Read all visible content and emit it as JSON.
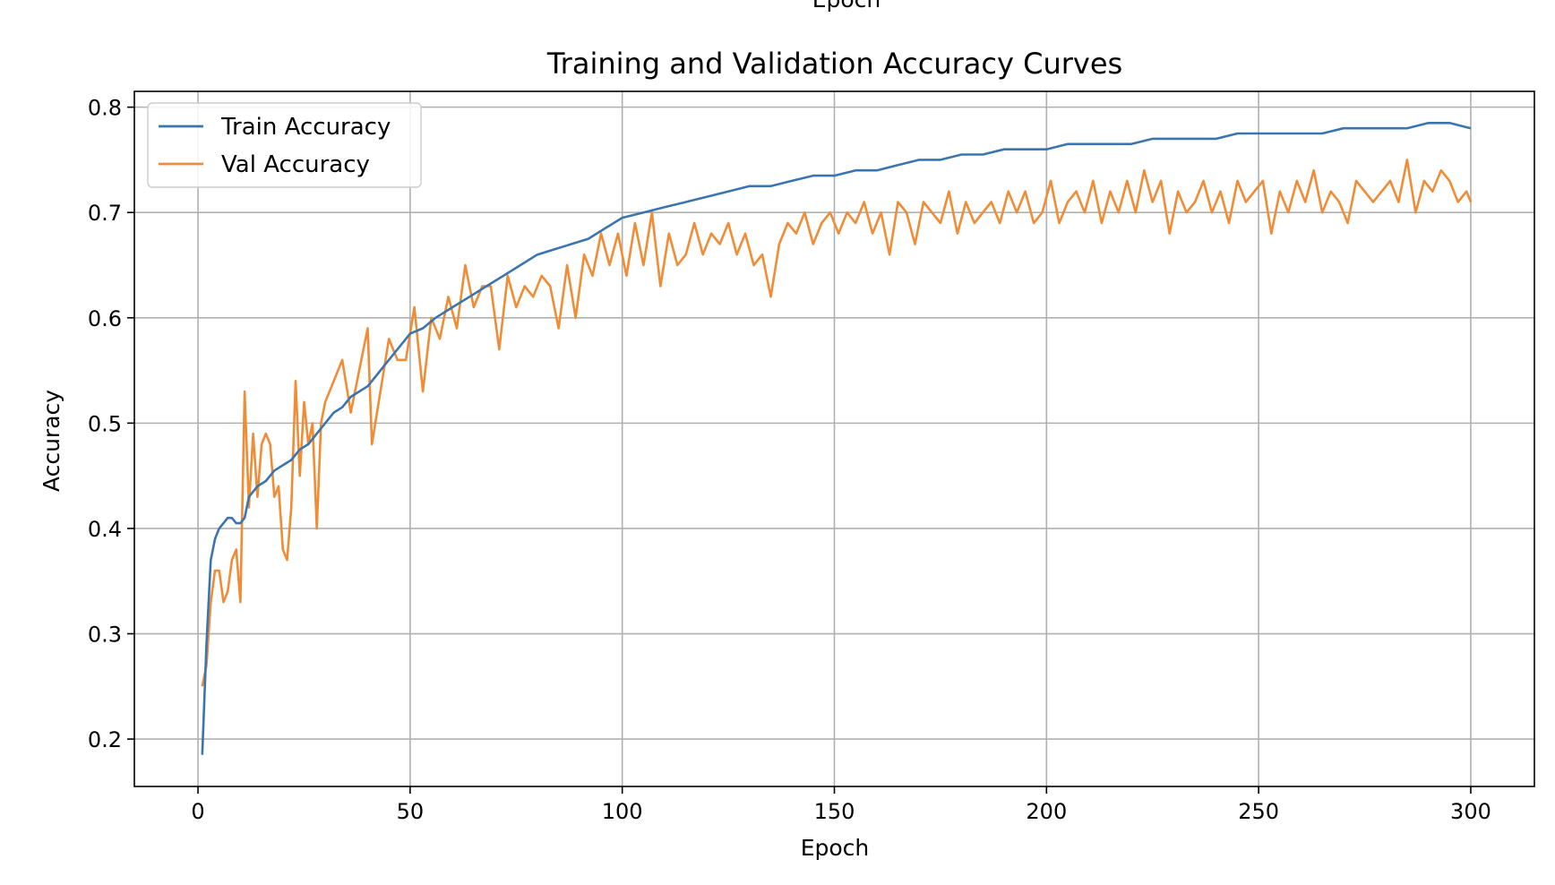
{
  "top_clipped_label": "Epoch",
  "chart_data": {
    "type": "line",
    "title": "Training and Validation Accuracy Curves",
    "xlabel": "Epoch",
    "ylabel": "Accuracy",
    "xlim": [
      -15,
      315
    ],
    "ylim": [
      0.155,
      0.815
    ],
    "xticks": [
      0,
      50,
      100,
      150,
      200,
      250,
      300
    ],
    "yticks": [
      0.2,
      0.3,
      0.4,
      0.5,
      0.6,
      0.7,
      0.8
    ],
    "grid": true,
    "legend_position": "upper-left",
    "series": [
      {
        "name": "Train Accuracy",
        "color": "#3a75b0",
        "points": [
          [
            1,
            0.185
          ],
          [
            2,
            0.29
          ],
          [
            3,
            0.37
          ],
          [
            4,
            0.39
          ],
          [
            5,
            0.4
          ],
          [
            6,
            0.405
          ],
          [
            7,
            0.41
          ],
          [
            8,
            0.41
          ],
          [
            9,
            0.405
          ],
          [
            10,
            0.405
          ],
          [
            11,
            0.41
          ],
          [
            12,
            0.43
          ],
          [
            14,
            0.44
          ],
          [
            16,
            0.445
          ],
          [
            18,
            0.455
          ],
          [
            20,
            0.46
          ],
          [
            22,
            0.465
          ],
          [
            24,
            0.475
          ],
          [
            26,
            0.48
          ],
          [
            28,
            0.49
          ],
          [
            30,
            0.5
          ],
          [
            32,
            0.51
          ],
          [
            34,
            0.515
          ],
          [
            36,
            0.525
          ],
          [
            38,
            0.53
          ],
          [
            40,
            0.535
          ],
          [
            42,
            0.545
          ],
          [
            44,
            0.555
          ],
          [
            46,
            0.565
          ],
          [
            48,
            0.575
          ],
          [
            50,
            0.585
          ],
          [
            53,
            0.59
          ],
          [
            56,
            0.6
          ],
          [
            60,
            0.61
          ],
          [
            64,
            0.62
          ],
          [
            68,
            0.63
          ],
          [
            72,
            0.64
          ],
          [
            76,
            0.65
          ],
          [
            80,
            0.66
          ],
          [
            84,
            0.665
          ],
          [
            88,
            0.67
          ],
          [
            92,
            0.675
          ],
          [
            96,
            0.685
          ],
          [
            100,
            0.695
          ],
          [
            105,
            0.7
          ],
          [
            110,
            0.705
          ],
          [
            115,
            0.71
          ],
          [
            120,
            0.715
          ],
          [
            125,
            0.72
          ],
          [
            130,
            0.725
          ],
          [
            135,
            0.725
          ],
          [
            140,
            0.73
          ],
          [
            145,
            0.735
          ],
          [
            150,
            0.735
          ],
          [
            155,
            0.74
          ],
          [
            160,
            0.74
          ],
          [
            165,
            0.745
          ],
          [
            170,
            0.75
          ],
          [
            175,
            0.75
          ],
          [
            180,
            0.755
          ],
          [
            185,
            0.755
          ],
          [
            190,
            0.76
          ],
          [
            195,
            0.76
          ],
          [
            200,
            0.76
          ],
          [
            205,
            0.765
          ],
          [
            210,
            0.765
          ],
          [
            215,
            0.765
          ],
          [
            220,
            0.765
          ],
          [
            225,
            0.77
          ],
          [
            230,
            0.77
          ],
          [
            235,
            0.77
          ],
          [
            240,
            0.77
          ],
          [
            245,
            0.775
          ],
          [
            250,
            0.775
          ],
          [
            255,
            0.775
          ],
          [
            260,
            0.775
          ],
          [
            265,
            0.775
          ],
          [
            270,
            0.78
          ],
          [
            275,
            0.78
          ],
          [
            280,
            0.78
          ],
          [
            285,
            0.78
          ],
          [
            290,
            0.785
          ],
          [
            295,
            0.785
          ],
          [
            300,
            0.78
          ]
        ]
      },
      {
        "name": "Val Accuracy",
        "color": "#f08c36",
        "points": [
          [
            1,
            0.25
          ],
          [
            2,
            0.27
          ],
          [
            3,
            0.33
          ],
          [
            4,
            0.36
          ],
          [
            5,
            0.36
          ],
          [
            6,
            0.33
          ],
          [
            7,
            0.34
          ],
          [
            8,
            0.37
          ],
          [
            9,
            0.38
          ],
          [
            10,
            0.33
          ],
          [
            11,
            0.53
          ],
          [
            12,
            0.42
          ],
          [
            13,
            0.49
          ],
          [
            14,
            0.43
          ],
          [
            15,
            0.48
          ],
          [
            16,
            0.49
          ],
          [
            17,
            0.48
          ],
          [
            18,
            0.43
          ],
          [
            19,
            0.44
          ],
          [
            20,
            0.38
          ],
          [
            21,
            0.37
          ],
          [
            22,
            0.42
          ],
          [
            23,
            0.54
          ],
          [
            24,
            0.45
          ],
          [
            25,
            0.52
          ],
          [
            26,
            0.48
          ],
          [
            27,
            0.5
          ],
          [
            28,
            0.4
          ],
          [
            29,
            0.5
          ],
          [
            30,
            0.52
          ],
          [
            32,
            0.54
          ],
          [
            34,
            0.56
          ],
          [
            36,
            0.51
          ],
          [
            38,
            0.55
          ],
          [
            40,
            0.59
          ],
          [
            41,
            0.48
          ],
          [
            43,
            0.53
          ],
          [
            45,
            0.58
          ],
          [
            47,
            0.56
          ],
          [
            49,
            0.56
          ],
          [
            51,
            0.61
          ],
          [
            53,
            0.53
          ],
          [
            55,
            0.6
          ],
          [
            57,
            0.58
          ],
          [
            59,
            0.62
          ],
          [
            61,
            0.59
          ],
          [
            63,
            0.65
          ],
          [
            65,
            0.61
          ],
          [
            67,
            0.63
          ],
          [
            69,
            0.63
          ],
          [
            71,
            0.57
          ],
          [
            73,
            0.64
          ],
          [
            75,
            0.61
          ],
          [
            77,
            0.63
          ],
          [
            79,
            0.62
          ],
          [
            81,
            0.64
          ],
          [
            83,
            0.63
          ],
          [
            85,
            0.59
          ],
          [
            87,
            0.65
          ],
          [
            89,
            0.6
          ],
          [
            91,
            0.66
          ],
          [
            93,
            0.64
          ],
          [
            95,
            0.68
          ],
          [
            97,
            0.65
          ],
          [
            99,
            0.68
          ],
          [
            101,
            0.64
          ],
          [
            103,
            0.69
          ],
          [
            105,
            0.65
          ],
          [
            107,
            0.7
          ],
          [
            109,
            0.63
          ],
          [
            111,
            0.68
          ],
          [
            113,
            0.65
          ],
          [
            115,
            0.66
          ],
          [
            117,
            0.69
          ],
          [
            119,
            0.66
          ],
          [
            121,
            0.68
          ],
          [
            123,
            0.67
          ],
          [
            125,
            0.69
          ],
          [
            127,
            0.66
          ],
          [
            129,
            0.68
          ],
          [
            131,
            0.65
          ],
          [
            133,
            0.66
          ],
          [
            135,
            0.62
          ],
          [
            137,
            0.67
          ],
          [
            139,
            0.69
          ],
          [
            141,
            0.68
          ],
          [
            143,
            0.7
          ],
          [
            145,
            0.67
          ],
          [
            147,
            0.69
          ],
          [
            149,
            0.7
          ],
          [
            151,
            0.68
          ],
          [
            153,
            0.7
          ],
          [
            155,
            0.69
          ],
          [
            157,
            0.71
          ],
          [
            159,
            0.68
          ],
          [
            161,
            0.7
          ],
          [
            163,
            0.66
          ],
          [
            165,
            0.71
          ],
          [
            167,
            0.7
          ],
          [
            169,
            0.67
          ],
          [
            171,
            0.71
          ],
          [
            173,
            0.7
          ],
          [
            175,
            0.69
          ],
          [
            177,
            0.72
          ],
          [
            179,
            0.68
          ],
          [
            181,
            0.71
          ],
          [
            183,
            0.69
          ],
          [
            185,
            0.7
          ],
          [
            187,
            0.71
          ],
          [
            189,
            0.69
          ],
          [
            191,
            0.72
          ],
          [
            193,
            0.7
          ],
          [
            195,
            0.72
          ],
          [
            197,
            0.69
          ],
          [
            199,
            0.7
          ],
          [
            201,
            0.73
          ],
          [
            203,
            0.69
          ],
          [
            205,
            0.71
          ],
          [
            207,
            0.72
          ],
          [
            209,
            0.7
          ],
          [
            211,
            0.73
          ],
          [
            213,
            0.69
          ],
          [
            215,
            0.72
          ],
          [
            217,
            0.7
          ],
          [
            219,
            0.73
          ],
          [
            221,
            0.7
          ],
          [
            223,
            0.74
          ],
          [
            225,
            0.71
          ],
          [
            227,
            0.73
          ],
          [
            229,
            0.68
          ],
          [
            231,
            0.72
          ],
          [
            233,
            0.7
          ],
          [
            235,
            0.71
          ],
          [
            237,
            0.73
          ],
          [
            239,
            0.7
          ],
          [
            241,
            0.72
          ],
          [
            243,
            0.69
          ],
          [
            245,
            0.73
          ],
          [
            247,
            0.71
          ],
          [
            249,
            0.72
          ],
          [
            251,
            0.73
          ],
          [
            253,
            0.68
          ],
          [
            255,
            0.72
          ],
          [
            257,
            0.7
          ],
          [
            259,
            0.73
          ],
          [
            261,
            0.71
          ],
          [
            263,
            0.74
          ],
          [
            265,
            0.7
          ],
          [
            267,
            0.72
          ],
          [
            269,
            0.71
          ],
          [
            271,
            0.69
          ],
          [
            273,
            0.73
          ],
          [
            275,
            0.72
          ],
          [
            277,
            0.71
          ],
          [
            279,
            0.72
          ],
          [
            281,
            0.73
          ],
          [
            283,
            0.71
          ],
          [
            285,
            0.75
          ],
          [
            287,
            0.7
          ],
          [
            289,
            0.73
          ],
          [
            291,
            0.72
          ],
          [
            293,
            0.74
          ],
          [
            295,
            0.73
          ],
          [
            297,
            0.71
          ],
          [
            299,
            0.72
          ],
          [
            300,
            0.71
          ]
        ]
      }
    ]
  }
}
